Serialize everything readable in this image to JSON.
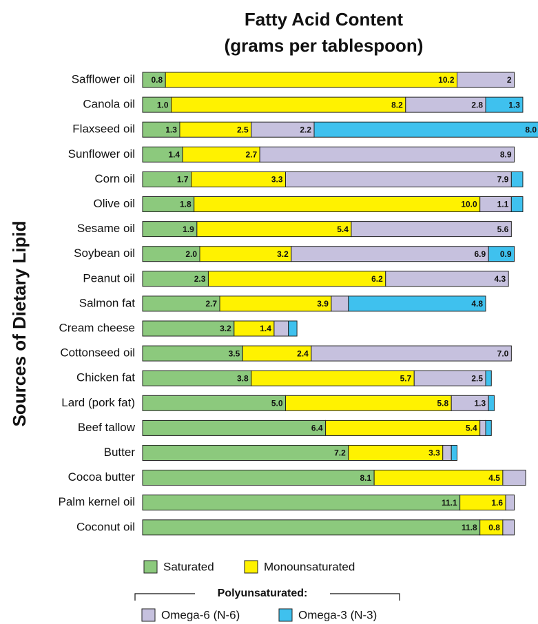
{
  "chart_data": {
    "type": "stacked_hbar",
    "title": "Fatty Acid Content",
    "subtitle": "(grams per tablespoon)",
    "y_axis_label": "Sources of Dietary Lipid",
    "legend_group_title": "Polyunsaturated:",
    "categories": [
      "Safflower oil",
      "Canola oil",
      "Flaxseed oil",
      "Sunflower oil",
      "Corn oil",
      "Olive oil",
      "Sesame oil",
      "Soybean oil",
      "Peanut oil",
      "Salmon fat",
      "Cream cheese",
      "Cottonseed oil",
      "Chicken fat",
      "Lard (pork fat)",
      "Beef tallow",
      "Butter",
      "Cocoa butter",
      "Palm kernel oil",
      "Coconut oil"
    ],
    "xlim": [
      0,
      14
    ],
    "series": [
      {
        "name": "Saturated",
        "color": "#8cc97d",
        "values": [
          0.8,
          1.0,
          1.3,
          1.4,
          1.7,
          1.8,
          1.9,
          2.0,
          2.3,
          2.7,
          3.2,
          3.5,
          3.8,
          5.0,
          6.4,
          7.2,
          8.1,
          11.1,
          11.8
        ],
        "value_labels": [
          "0.8",
          "1.0",
          "1.3",
          "1.4",
          "1.7",
          "1.8",
          "1.9",
          "2.0",
          "2.3",
          "2.7",
          "3.2",
          "3.5",
          "3.8",
          "5.0",
          "6.4",
          "7.2",
          "8.1",
          "11.1",
          "11.8"
        ]
      },
      {
        "name": "Monounsaturated",
        "color": "#fff200",
        "values": [
          10.2,
          8.2,
          2.5,
          2.7,
          3.3,
          10.0,
          5.4,
          3.2,
          6.2,
          3.9,
          1.4,
          2.4,
          5.7,
          5.8,
          5.4,
          3.3,
          4.5,
          1.6,
          0.8
        ],
        "value_labels": [
          "10.2",
          "8.2",
          "2.5",
          "2.7",
          "3.3",
          "10.0",
          "5.4",
          "3.2",
          "6.2",
          "3.9",
          "1.4",
          "2.4",
          "5.7",
          "5.8",
          "5.4",
          "3.3",
          "4.5",
          "1.6",
          "0.8"
        ]
      },
      {
        "name": "Omega-6 (N-6)",
        "color": "#c6c1de",
        "values": [
          2,
          2.8,
          2.2,
          8.9,
          7.9,
          1.1,
          5.6,
          6.9,
          4.3,
          0.6,
          0.5,
          7.0,
          2.5,
          1.3,
          0.2,
          0.3,
          0.8,
          0.3,
          0.4
        ],
        "value_labels": [
          "2",
          "2.8",
          "2.2",
          "8.9",
          "7.9",
          "1.1",
          "5.6",
          "6.9",
          "4.3",
          null,
          null,
          "7.0",
          "2.5",
          "1.3",
          null,
          null,
          null,
          null,
          null
        ]
      },
      {
        "name": "Omega-3 (N-3)",
        "color": "#3fc1ee",
        "values": [
          0,
          1.3,
          8.0,
          0,
          0.4,
          0.4,
          0,
          0.9,
          0,
          4.8,
          0.3,
          0,
          0.2,
          0.2,
          0.2,
          0.2,
          0,
          0,
          0
        ],
        "value_labels": [
          null,
          "1.3",
          "8.0",
          null,
          null,
          null,
          null,
          "0.9",
          null,
          "4.8",
          null,
          null,
          null,
          null,
          null,
          null,
          null,
          null,
          null
        ]
      }
    ]
  }
}
